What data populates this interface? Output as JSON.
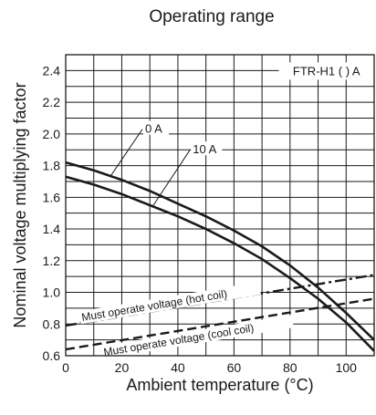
{
  "chart_data": {
    "type": "line",
    "title": "Operating range",
    "xlabel": "Ambient temperature (°C)",
    "ylabel": "Nominal  voltage multiplying factor",
    "xlim": [
      0,
      110
    ],
    "ylim": [
      0.6,
      2.5
    ],
    "xticks": [
      0,
      20,
      40,
      60,
      80,
      100
    ],
    "yticks": [
      0.6,
      0.8,
      1.0,
      1.2,
      1.4,
      1.6,
      1.8,
      2.0,
      2.2,
      2.4
    ],
    "x_minor_step": 10,
    "y_minor_step": 0.1,
    "grid": true,
    "legend_box": "FTR-H1 (  ) A",
    "series": [
      {
        "name": "0 A",
        "style": "solid",
        "x": [
          0,
          10,
          20,
          30,
          40,
          50,
          60,
          70,
          80,
          90,
          100,
          110
        ],
        "y": [
          1.82,
          1.77,
          1.71,
          1.64,
          1.56,
          1.48,
          1.39,
          1.29,
          1.17,
          1.03,
          0.87,
          0.7
        ]
      },
      {
        "name": "10 A",
        "style": "solid",
        "x": [
          0,
          10,
          20,
          30,
          40,
          50,
          60,
          70,
          80,
          90,
          100,
          110
        ],
        "y": [
          1.73,
          1.68,
          1.62,
          1.55,
          1.48,
          1.4,
          1.31,
          1.21,
          1.09,
          0.96,
          0.81,
          0.63
        ]
      },
      {
        "name": "Must operate voltage (hot coil)",
        "style": "dash-dot",
        "x": [
          0,
          110
        ],
        "y": [
          0.79,
          1.11
        ]
      },
      {
        "name": "Must operate voltage (cool coil)",
        "style": "dashed",
        "x": [
          0,
          110
        ],
        "y": [
          0.64,
          0.96
        ]
      }
    ]
  }
}
